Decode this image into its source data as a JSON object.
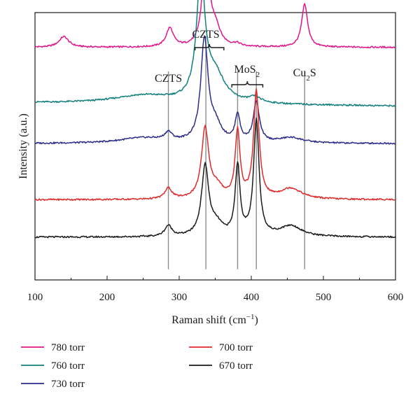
{
  "chart_data": {
    "type": "line",
    "title": "",
    "xlabel_base": "Raman shift (cm",
    "xlabel_sup": "−1",
    "xlabel_end": ")",
    "ylabel": "Intensity (a.u.)",
    "xlim": [
      100,
      600
    ],
    "x_ticks": [
      "100",
      "200",
      "300",
      "400",
      "500",
      "600"
    ],
    "grid": false,
    "legend_position": "bottom",
    "annotations": [
      {
        "id": "czts1",
        "base": "CZTS",
        "sub": "",
        "tail": "",
        "x": 285
      },
      {
        "id": "czts2",
        "base": "CZTS",
        "sub": "",
        "tail": "",
        "x": 337
      },
      {
        "id": "mos2",
        "base": "MoS",
        "sub": "2",
        "tail": "",
        "x": 394
      },
      {
        "id": "cu2s",
        "base": "Cu",
        "sub": "2",
        "tail": "S",
        "x": 474
      }
    ],
    "reference_lines_x": [
      285,
      337,
      381,
      407,
      474
    ],
    "series": [
      {
        "name": "780 torr",
        "color": "#e0168a",
        "baseline": 0.87,
        "peaks": [
          {
            "x": 140,
            "h": 0.04,
            "w": 8
          },
          {
            "x": 287,
            "h": 0.07,
            "w": 6
          },
          {
            "x": 337,
            "h": 0.4,
            "w": 5
          },
          {
            "x": 350,
            "h": 0.07,
            "w": 8
          },
          {
            "x": 380,
            "h": 0.01,
            "w": 6
          },
          {
            "x": 474,
            "h": 0.16,
            "w": 5
          }
        ]
      },
      {
        "name": "760 torr",
        "color": "#117f7c",
        "baseline": 0.65,
        "peaks": [
          {
            "x": 250,
            "h": 0.03,
            "w": 50
          },
          {
            "x": 330,
            "h": 0.46,
            "w": 7
          },
          {
            "x": 350,
            "h": 0.1,
            "w": 16
          },
          {
            "x": 405,
            "h": 0.02,
            "w": 10
          }
        ]
      },
      {
        "name": "730 torr",
        "color": "#2c2c8c",
        "baseline": 0.51,
        "peaks": [
          {
            "x": 250,
            "h": 0.02,
            "w": 40
          },
          {
            "x": 285,
            "h": 0.03,
            "w": 6
          },
          {
            "x": 335,
            "h": 0.38,
            "w": 6
          },
          {
            "x": 350,
            "h": 0.06,
            "w": 10
          },
          {
            "x": 381,
            "h": 0.1,
            "w": 4
          },
          {
            "x": 407,
            "h": 0.15,
            "w": 5
          },
          {
            "x": 455,
            "h": 0.02,
            "w": 20
          }
        ]
      },
      {
        "name": "700 torr",
        "color": "#e02a2a",
        "baseline": 0.3,
        "peaks": [
          {
            "x": 285,
            "h": 0.04,
            "w": 6
          },
          {
            "x": 336,
            "h": 0.26,
            "w": 6
          },
          {
            "x": 352,
            "h": 0.04,
            "w": 10
          },
          {
            "x": 381,
            "h": 0.25,
            "w": 4
          },
          {
            "x": 407,
            "h": 0.4,
            "w": 4.5
          },
          {
            "x": 455,
            "h": 0.04,
            "w": 18
          }
        ]
      },
      {
        "name": "670 torr",
        "color": "#1a1a1a",
        "baseline": 0.16,
        "peaks": [
          {
            "x": 285,
            "h": 0.04,
            "w": 6
          },
          {
            "x": 336,
            "h": 0.26,
            "w": 6
          },
          {
            "x": 352,
            "h": 0.04,
            "w": 10
          },
          {
            "x": 381,
            "h": 0.26,
            "w": 4
          },
          {
            "x": 407,
            "h": 0.43,
            "w": 4.5
          },
          {
            "x": 455,
            "h": 0.04,
            "w": 18
          }
        ]
      }
    ]
  }
}
